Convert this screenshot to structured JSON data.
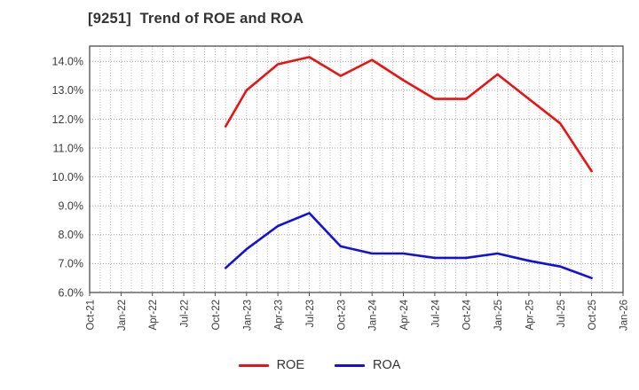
{
  "header": {
    "title": "[9251]  Trend of ROE and ROA"
  },
  "chart_data": {
    "type": "line",
    "title": "[9251]  Trend of ROE and ROA",
    "ticker": "9251",
    "grid": "dotted, monthly vertical lines and 1% horizontal lines",
    "legend_position": "bottom-center",
    "x_range_months": [
      0,
      51
    ],
    "ylim": [
      6,
      14.53
    ],
    "x_tick_labels": [
      "Oct-21",
      "Jan-22",
      "Apr-22",
      "Jul-22",
      "Oct-22",
      "Jan-23",
      "Apr-23",
      "Jul-23",
      "Oct-23",
      "Jan-24",
      "Apr-24",
      "Jul-24",
      "Oct-24",
      "Jan-25",
      "Apr-25",
      "Jul-25",
      "Oct-25",
      "Jan-26"
    ],
    "x_tick_months": [
      0,
      3,
      6,
      9,
      12,
      15,
      18,
      21,
      24,
      27,
      30,
      33,
      36,
      39,
      42,
      45,
      48,
      51
    ],
    "y_tick_values": [
      6,
      7,
      8,
      9,
      10,
      11,
      12,
      13,
      14
    ],
    "y_tick_labels": [
      "6.0%",
      "7.0%",
      "8.0%",
      "9.0%",
      "10.0%",
      "11.0%",
      "12.0%",
      "13.0%",
      "14.0%"
    ],
    "data_point_dates": [
      "Nov-22",
      "Jan-23",
      "Apr-23",
      "Jul-23",
      "Oct-23",
      "Jan-24",
      "Apr-24",
      "Jul-24",
      "Oct-24",
      "Jan-25",
      "Apr-25",
      "Jul-25",
      "Oct-25"
    ],
    "series": [
      {
        "name": "ROE",
        "color": "#ee1111",
        "x_months": [
          13,
          15,
          18,
          21,
          24,
          27,
          30,
          33,
          36,
          39,
          42,
          45,
          48
        ],
        "values": [
          11.75,
          13.0,
          13.9,
          14.15,
          13.5,
          14.05,
          13.35,
          12.7,
          12.7,
          13.55,
          12.7,
          11.85,
          10.2
        ]
      },
      {
        "name": "ROA",
        "color": "#1111dd",
        "x_months": [
          13,
          15,
          18,
          21,
          24,
          27,
          30,
          33,
          36,
          39,
          42,
          45,
          48
        ],
        "values": [
          6.85,
          7.5,
          8.3,
          8.75,
          7.6,
          7.35,
          7.35,
          7.2,
          7.2,
          7.35,
          7.1,
          6.9,
          6.5
        ]
      }
    ]
  }
}
